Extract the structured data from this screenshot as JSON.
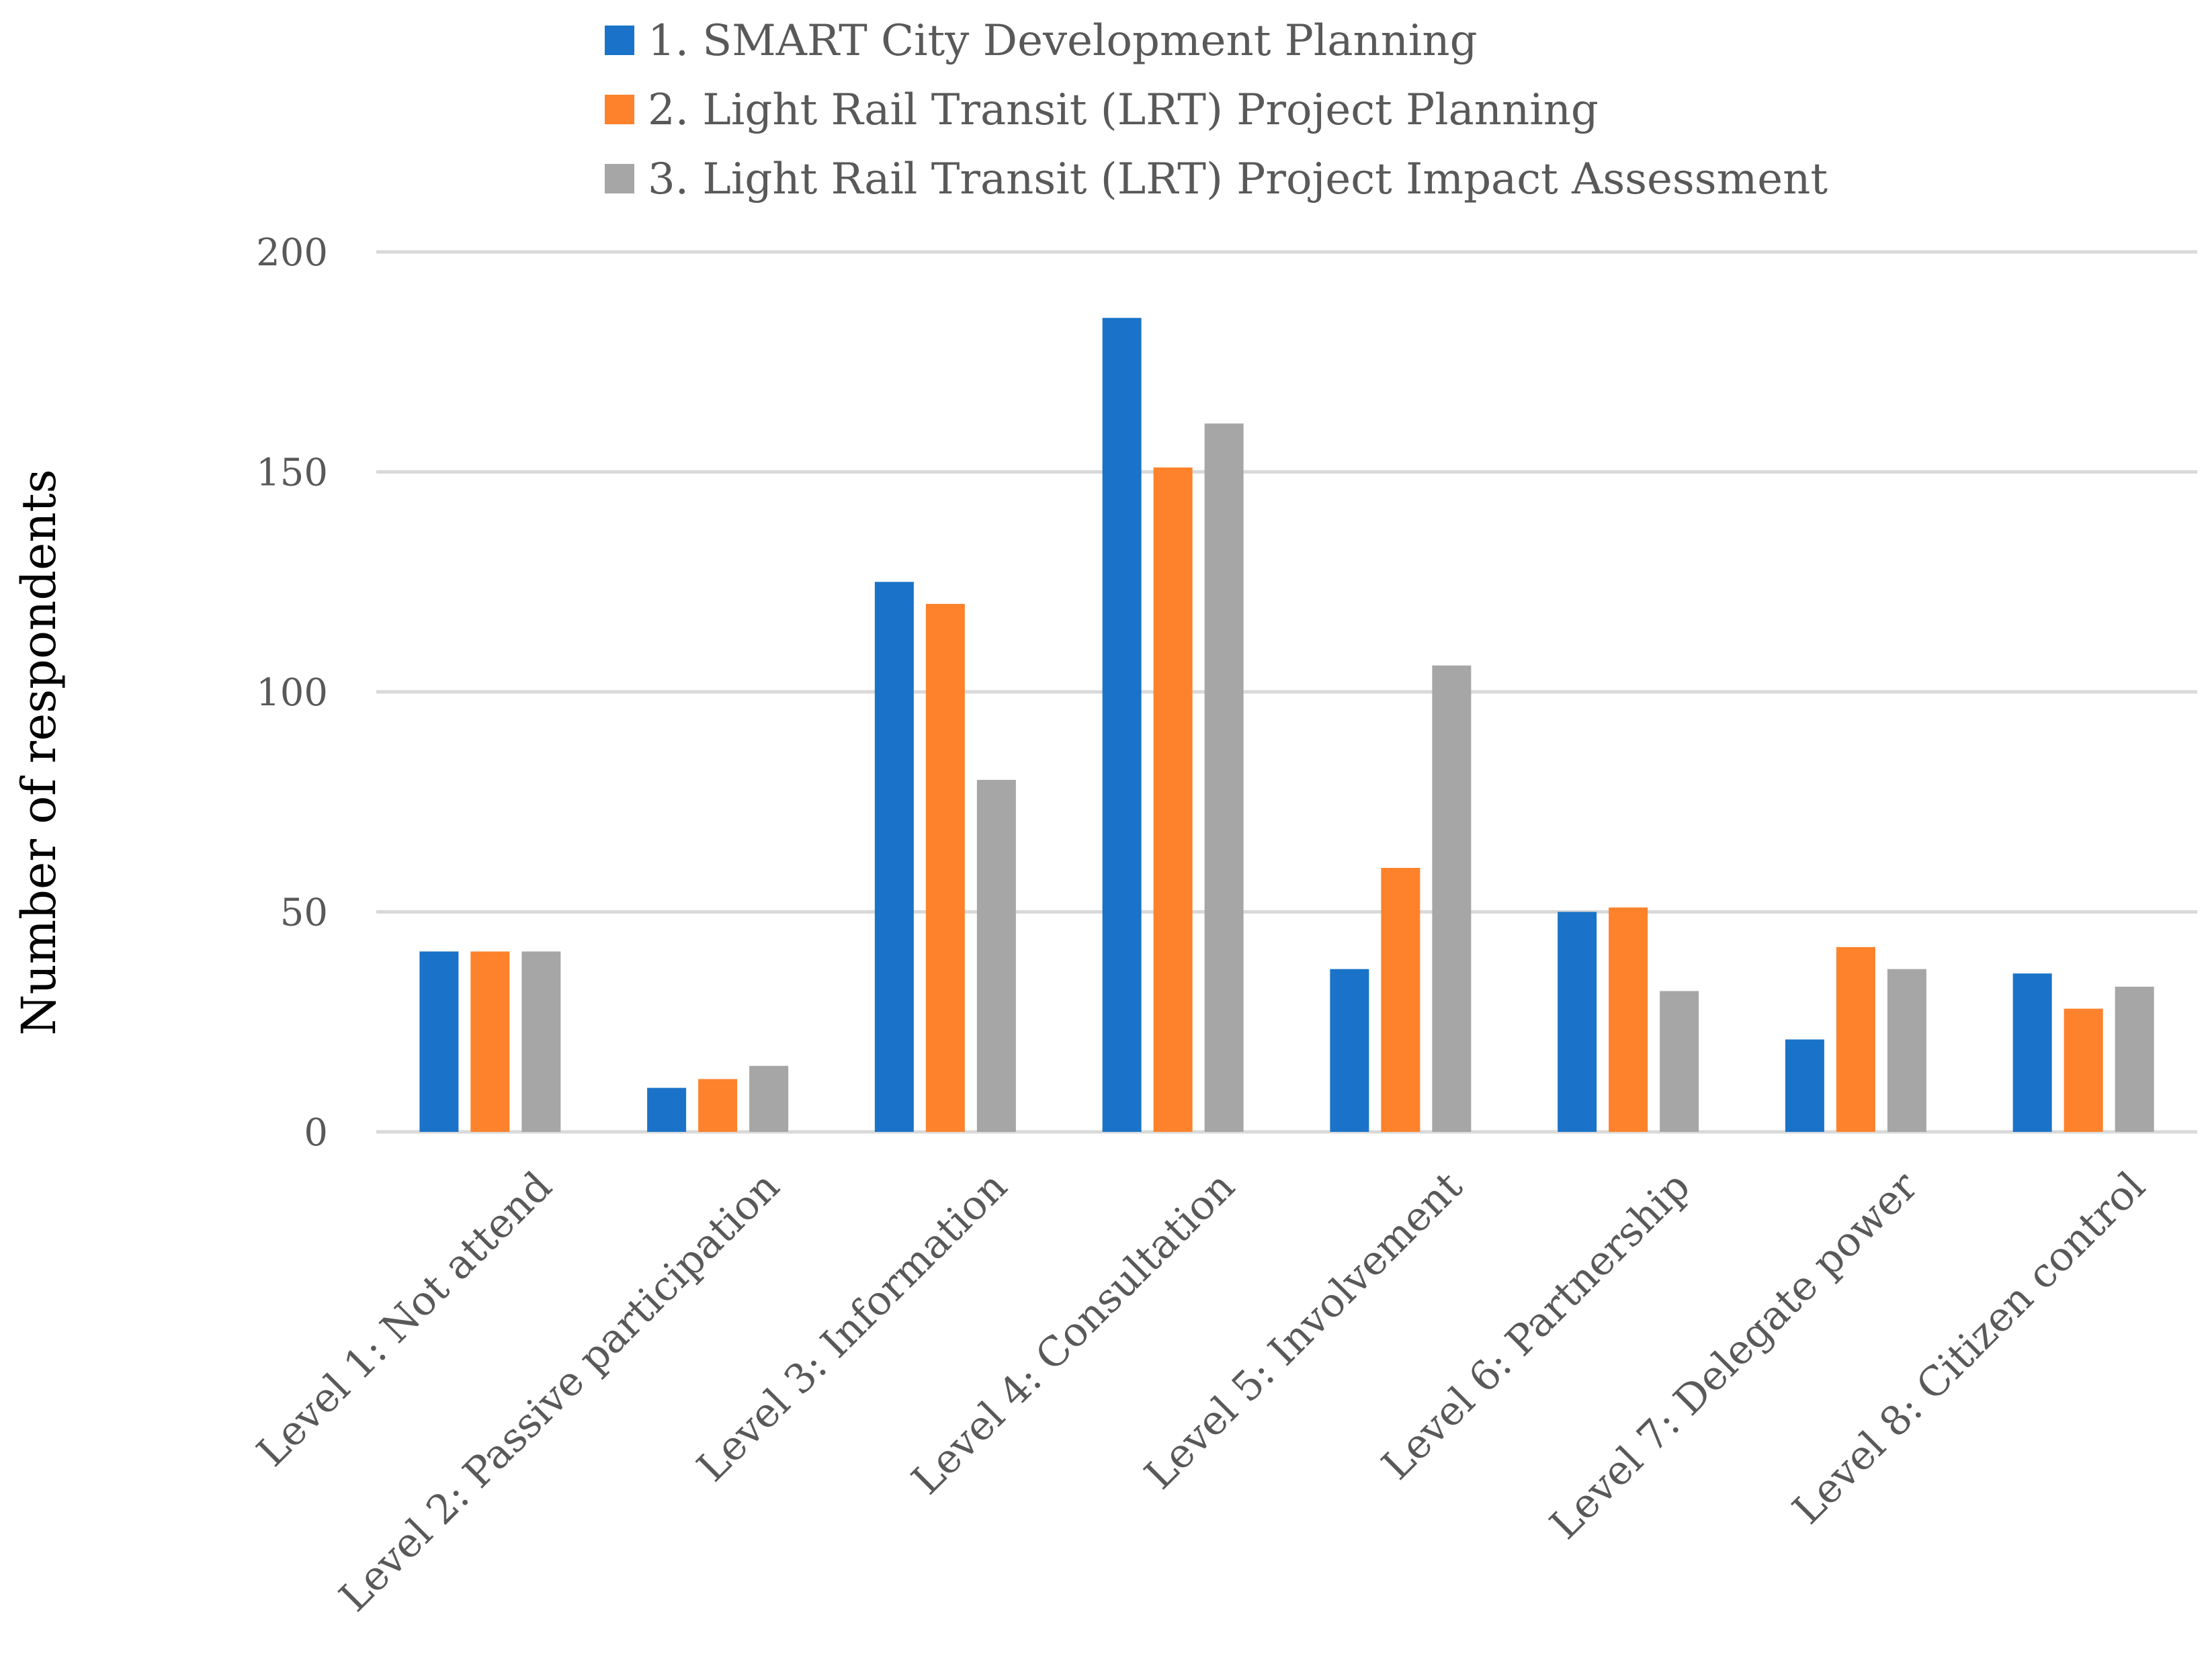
{
  "chart_data": {
    "type": "bar",
    "title": "",
    "xlabel": "",
    "ylabel": "Number of respondents",
    "ylim": [
      0,
      200
    ],
    "yticks": [
      0,
      50,
      100,
      150,
      200
    ],
    "grid": true,
    "legend_position": "top",
    "categories": [
      "Level 1: Not attend",
      "Level 2: Passive participation",
      "Level 3: Information",
      "Level 4: Consultation",
      "Level 5: Involvement",
      "Level 6: Partnership",
      "Level 7: Delegate power",
      "Level 8: Citizen control"
    ],
    "series": [
      {
        "name": "1. SMART City Development Planning",
        "color": "#1a73c8",
        "values": [
          41,
          10,
          125,
          185,
          37,
          50,
          21,
          36
        ]
      },
      {
        "name": "2. Light Rail Transit (LRT) Project Planning",
        "color": "#fd822b",
        "values": [
          41,
          12,
          120,
          151,
          60,
          51,
          42,
          28
        ]
      },
      {
        "name": "3. Light Rail Transit (LRT) Project Impact Assessment",
        "color": "#a6a6a6",
        "values": [
          41,
          15,
          80,
          161,
          106,
          32,
          37,
          33
        ]
      }
    ]
  }
}
